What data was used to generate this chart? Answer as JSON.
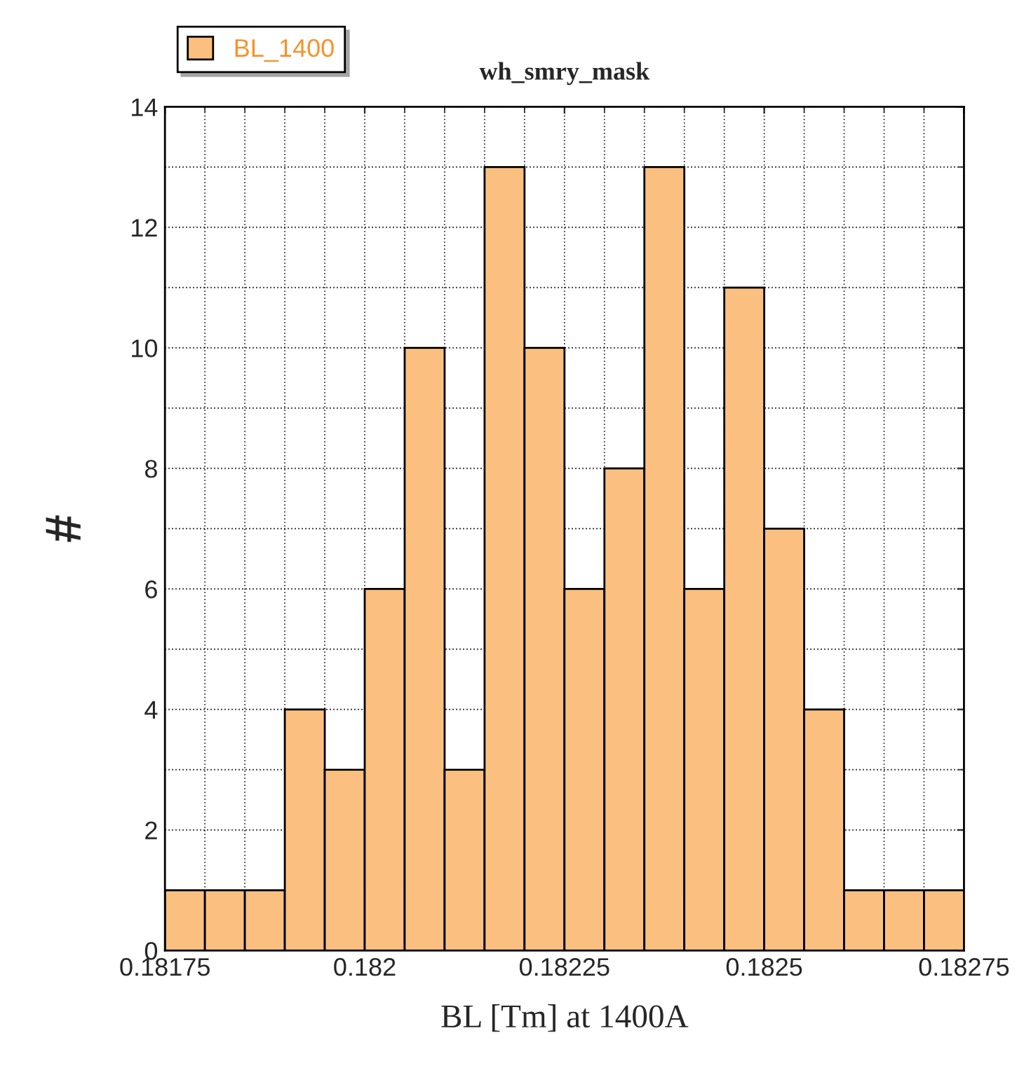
{
  "chart_data": {
    "type": "histogram",
    "title": "wh_smry_mask",
    "xlabel": "BL [Tm] at 1400A",
    "ylabel": "#",
    "bins": [
      0.18175,
      0.1818,
      0.18185,
      0.1819,
      0.18195,
      0.182,
      0.18205,
      0.1821,
      0.18215,
      0.1822,
      0.18225,
      0.1823,
      0.18235,
      0.1824,
      0.18245,
      0.1825,
      0.18255,
      0.1826,
      0.18265,
      0.1827,
      0.18275
    ],
    "series": [
      {
        "name": "BL_1400",
        "color": "#fbc07f",
        "values": [
          1,
          1,
          1,
          4,
          3,
          6,
          10,
          3,
          13,
          10,
          6,
          8,
          13,
          6,
          11,
          7,
          4,
          1,
          1,
          1
        ]
      }
    ],
    "xlim": [
      0.18175,
      0.18275
    ],
    "xticks": [
      0.18175,
      0.182,
      0.18225,
      0.1825,
      0.18275
    ],
    "ylim": [
      0,
      14
    ],
    "yticks": [
      0,
      2,
      4,
      6,
      8,
      10,
      12,
      14
    ],
    "grid": true,
    "legend": "top left"
  }
}
